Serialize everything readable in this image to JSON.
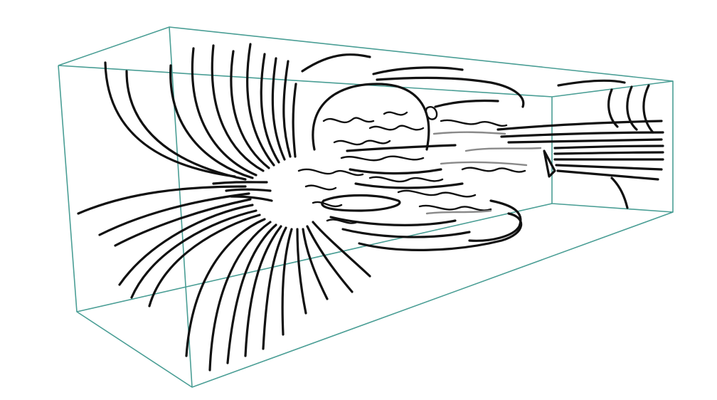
{
  "figure": {
    "description_visible_text": "",
    "colors": {
      "bounding_box": "#4a9e95",
      "streamlines": "#111111",
      "background": "#ffffff"
    },
    "icon": "streamline-flow-visualization"
  }
}
